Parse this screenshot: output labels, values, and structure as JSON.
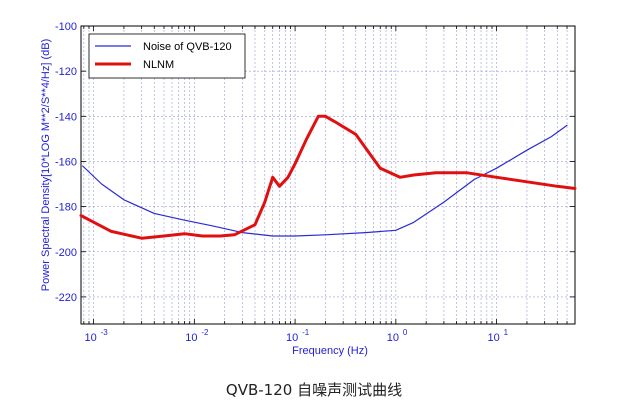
{
  "caption": "QVB-120 自噪声测试曲线",
  "chart_data": {
    "type": "line",
    "xlabel": "Frequency (Hz)",
    "ylabel": "Power Spectral Density[10*LOG M**2/S**4/Hz] (dB)",
    "x_scale": "log",
    "xlim": [
      0.00075,
      60
    ],
    "ylim": [
      -232,
      -100
    ],
    "grid": true,
    "legend_position": "top-left",
    "x_ticks": [
      0.001,
      0.01,
      0.1,
      1,
      10
    ],
    "x_tick_labels": [
      {
        "base": "10",
        "exp": "-3"
      },
      {
        "base": "10",
        "exp": "-2"
      },
      {
        "base": "10",
        "exp": "-1"
      },
      {
        "base": "10",
        "exp": "0"
      },
      {
        "base": "10",
        "exp": "1"
      }
    ],
    "y_ticks": [
      -100,
      -120,
      -140,
      -160,
      -180,
      -200,
      -220
    ],
    "y_tick_labels": [
      "-100",
      "-120",
      "-140",
      "-160",
      "-180",
      "-200",
      "-220"
    ],
    "series": [
      {
        "name": "Noise of QVB-120",
        "color": "#2b2bd6",
        "x": [
          0.00078,
          0.0012,
          0.002,
          0.004,
          0.008,
          0.015,
          0.03,
          0.06,
          0.1,
          0.2,
          0.5,
          1,
          1.5,
          3,
          6,
          10,
          20,
          35,
          50
        ],
        "y": [
          -162,
          -170,
          -177,
          -183,
          -186,
          -188.5,
          -191.5,
          -193,
          -193,
          -192.5,
          -191.5,
          -190.5,
          -187,
          -178,
          -168,
          -163,
          -155,
          -149,
          -144
        ]
      },
      {
        "name": "NLNM",
        "color": "#e01010",
        "x": [
          0.00075,
          0.0015,
          0.003,
          0.005,
          0.008,
          0.012,
          0.018,
          0.025,
          0.04,
          0.05,
          0.06,
          0.07,
          0.085,
          0.1,
          0.13,
          0.17,
          0.2,
          0.25,
          0.4,
          0.7,
          1.1,
          1.5,
          2.5,
          5,
          10,
          20,
          40,
          60
        ],
        "y": [
          -184,
          -191,
          -194,
          -193,
          -192,
          -193,
          -193,
          -192.5,
          -188,
          -178,
          -167,
          -171,
          -167,
          -161,
          -150,
          -140,
          -140,
          -142.5,
          -148,
          -163,
          -167,
          -166,
          -165,
          -165,
          -167,
          -169,
          -171,
          -172
        ]
      }
    ]
  }
}
